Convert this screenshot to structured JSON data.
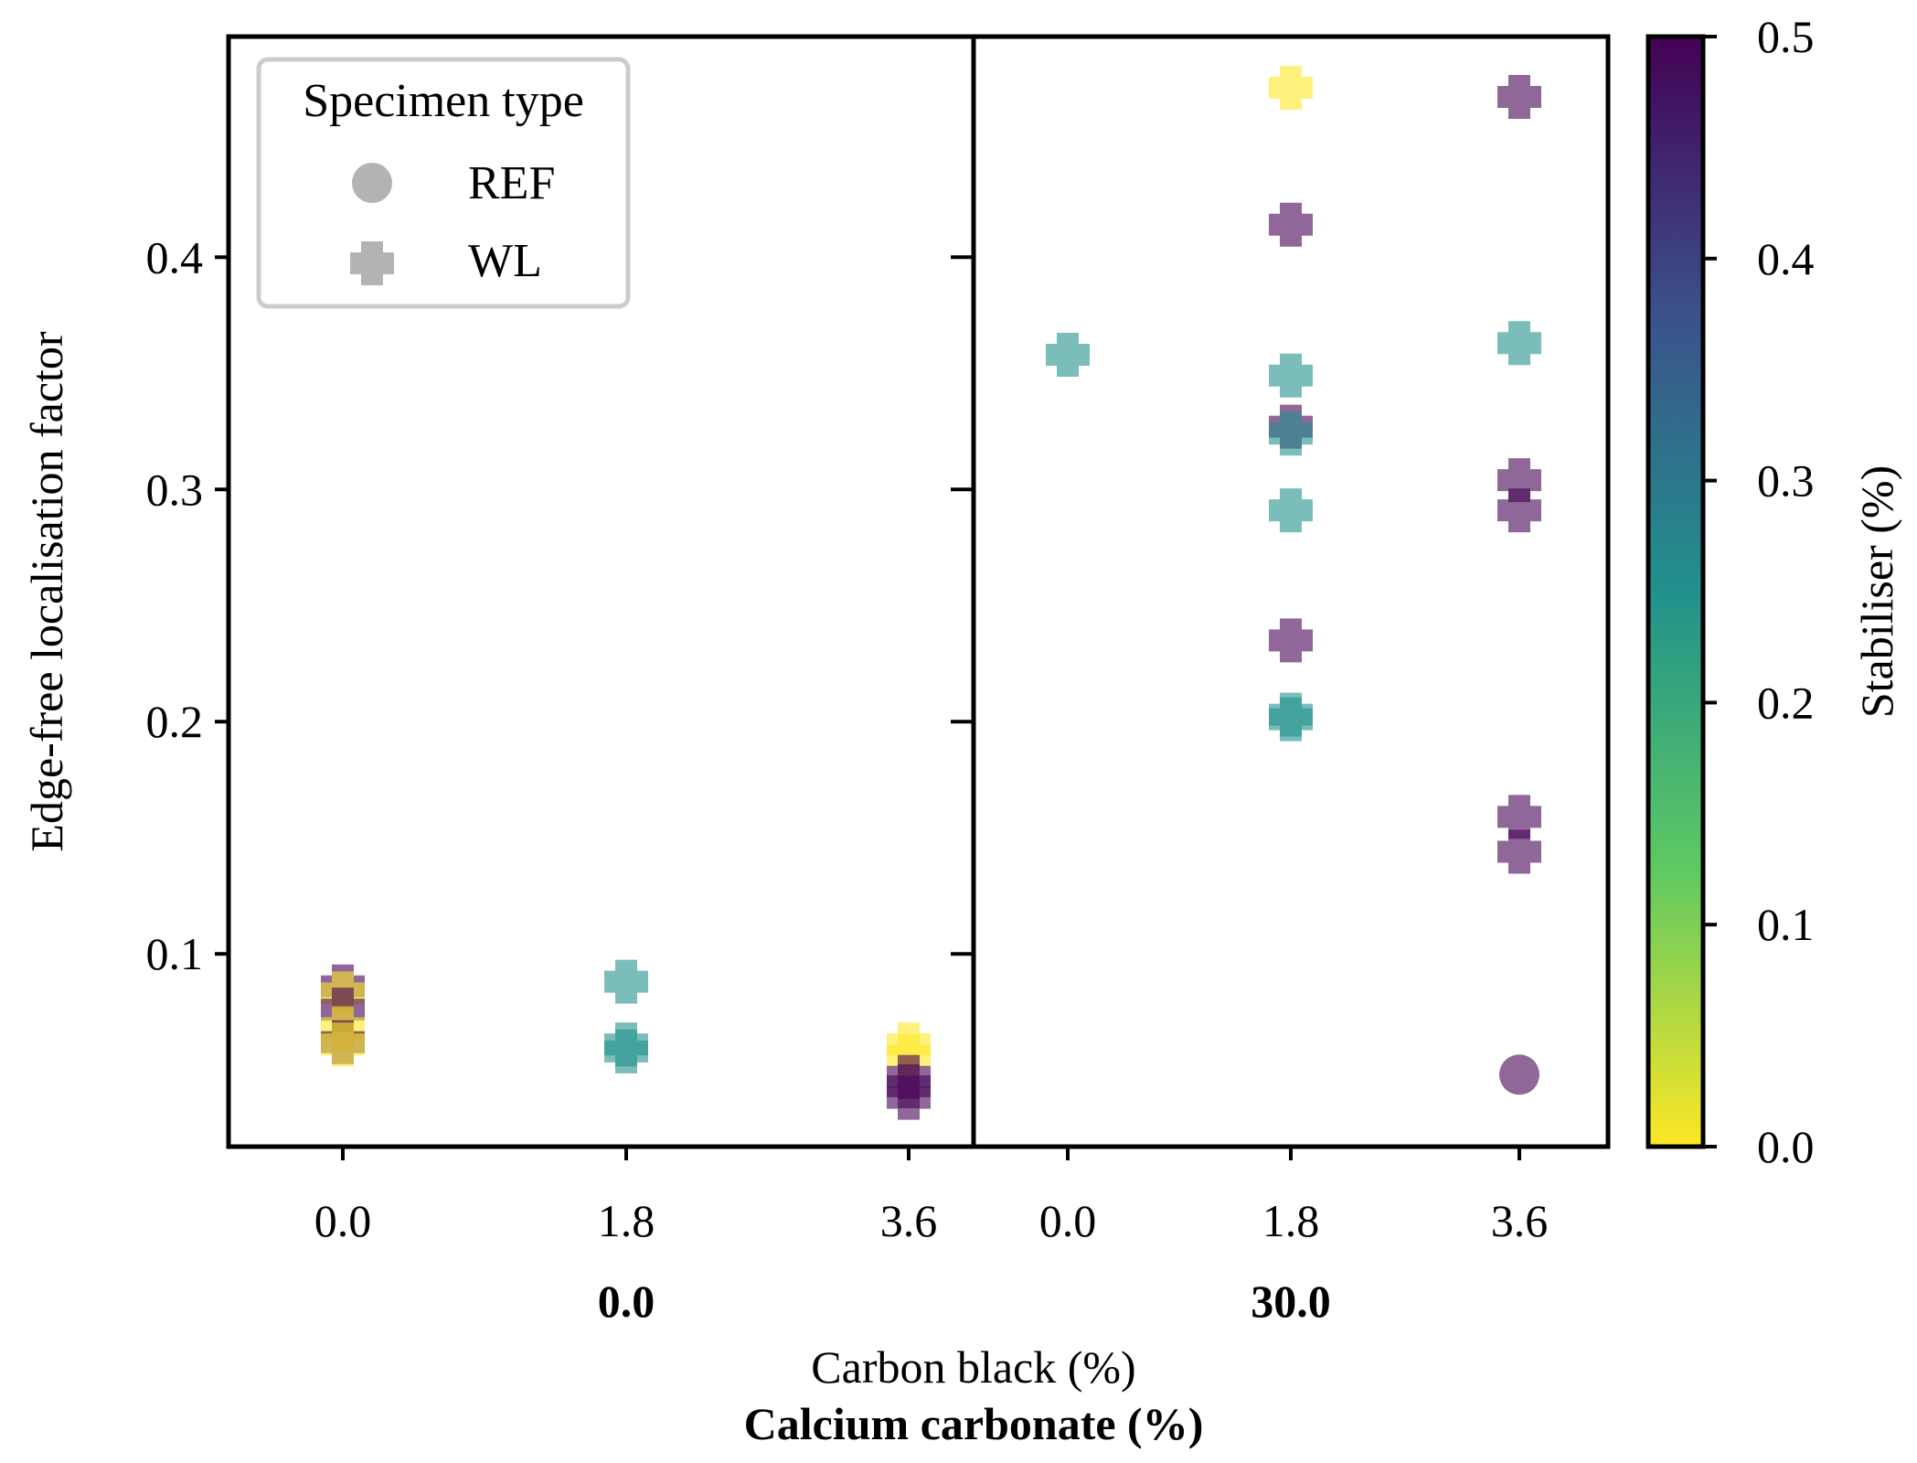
{
  "chart_data": {
    "type": "scatter",
    "ylabel": "Edge-free localisation factor",
    "xlabel": "Carbon black (%)",
    "group_axis_label": "Calcium carbonate (%)",
    "ylim": [
      0.017,
      0.495
    ],
    "y_ticks": [
      0.1,
      0.2,
      0.3,
      0.4
    ],
    "y_tick_labels": [
      "0.1",
      "0.2",
      "0.3",
      "0.4"
    ],
    "x_categories": [
      0.0,
      1.8,
      3.6
    ],
    "x_tick_labels": [
      "0.0",
      "1.8",
      "3.6"
    ],
    "panels": [
      {
        "group_label": "0.0",
        "points": [
          {
            "x": 0.0,
            "y": 0.086,
            "type": "WL",
            "stabiliser": 0.5
          },
          {
            "x": 0.0,
            "y": 0.083,
            "type": "WL",
            "stabiliser": 0.0
          },
          {
            "x": 0.0,
            "y": 0.076,
            "type": "WL",
            "stabiliser": 0.5
          },
          {
            "x": 0.0,
            "y": 0.068,
            "type": "WL",
            "stabiliser": 0.0
          },
          {
            "x": 0.0,
            "y": 0.062,
            "type": "WL",
            "stabiliser": 0.5
          },
          {
            "x": 0.0,
            "y": 0.061,
            "type": "WL",
            "stabiliser": 0.0
          },
          {
            "x": 1.8,
            "y": 0.088,
            "type": "WL",
            "stabiliser": 0.25
          },
          {
            "x": 1.8,
            "y": 0.061,
            "type": "WL",
            "stabiliser": 0.25
          },
          {
            "x": 1.8,
            "y": 0.058,
            "type": "WL",
            "stabiliser": 0.25
          },
          {
            "x": 3.6,
            "y": 0.061,
            "type": "WL",
            "stabiliser": 0.0
          },
          {
            "x": 3.6,
            "y": 0.056,
            "type": "WL",
            "stabiliser": 0.0
          },
          {
            "x": 3.6,
            "y": 0.047,
            "type": "WL",
            "stabiliser": 0.5
          },
          {
            "x": 3.6,
            "y": 0.043,
            "type": "WL",
            "stabiliser": 0.5
          },
          {
            "x": 3.6,
            "y": 0.038,
            "type": "WL",
            "stabiliser": 0.5
          }
        ]
      },
      {
        "group_label": "30.0",
        "points": [
          {
            "x": 0.0,
            "y": 0.358,
            "type": "WL",
            "stabiliser": 0.25
          },
          {
            "x": 1.8,
            "y": 0.473,
            "type": "WL",
            "stabiliser": 0.0
          },
          {
            "x": 1.8,
            "y": 0.414,
            "type": "WL",
            "stabiliser": 0.5
          },
          {
            "x": 1.8,
            "y": 0.349,
            "type": "WL",
            "stabiliser": 0.25
          },
          {
            "x": 1.8,
            "y": 0.327,
            "type": "WL",
            "stabiliser": 0.5
          },
          {
            "x": 1.8,
            "y": 0.324,
            "type": "WL",
            "stabiliser": 0.25
          },
          {
            "x": 1.8,
            "y": 0.291,
            "type": "WL",
            "stabiliser": 0.25
          },
          {
            "x": 1.8,
            "y": 0.235,
            "type": "WL",
            "stabiliser": 0.5
          },
          {
            "x": 1.8,
            "y": 0.203,
            "type": "WL",
            "stabiliser": 0.25
          },
          {
            "x": 1.8,
            "y": 0.201,
            "type": "WL",
            "stabiliser": 0.25
          },
          {
            "x": 3.6,
            "y": 0.469,
            "type": "WL",
            "stabiliser": 0.5
          },
          {
            "x": 3.6,
            "y": 0.363,
            "type": "WL",
            "stabiliser": 0.25
          },
          {
            "x": 3.6,
            "y": 0.304,
            "type": "WL",
            "stabiliser": 0.5
          },
          {
            "x": 3.6,
            "y": 0.291,
            "type": "WL",
            "stabiliser": 0.5
          },
          {
            "x": 3.6,
            "y": 0.159,
            "type": "WL",
            "stabiliser": 0.5
          },
          {
            "x": 3.6,
            "y": 0.144,
            "type": "WL",
            "stabiliser": 0.5
          },
          {
            "x": 3.6,
            "y": 0.048,
            "type": "REF",
            "stabiliser": 0.5
          }
        ]
      }
    ],
    "legend": {
      "title": "Specimen type",
      "entries": [
        {
          "label": "REF",
          "marker": "circle"
        },
        {
          "label": "WL",
          "marker": "plus"
        }
      ],
      "location": "top-left",
      "marker_color": "#b3b3b3"
    },
    "colorbar": {
      "label": "Stabiliser (%)",
      "range": [
        0.0,
        0.5
      ],
      "ticks": [
        0.0,
        0.1,
        0.2,
        0.3,
        0.4,
        0.5
      ],
      "tick_labels": [
        "0.0",
        "0.1",
        "0.2",
        "0.3",
        "0.4",
        "0.5"
      ],
      "colormap": "viridis_r"
    },
    "marker_alpha": 0.6
  },
  "colors": {
    "viridis_stops": [
      "#fde725",
      "#5ec962",
      "#21918c",
      "#3b528b",
      "#440154"
    ]
  }
}
